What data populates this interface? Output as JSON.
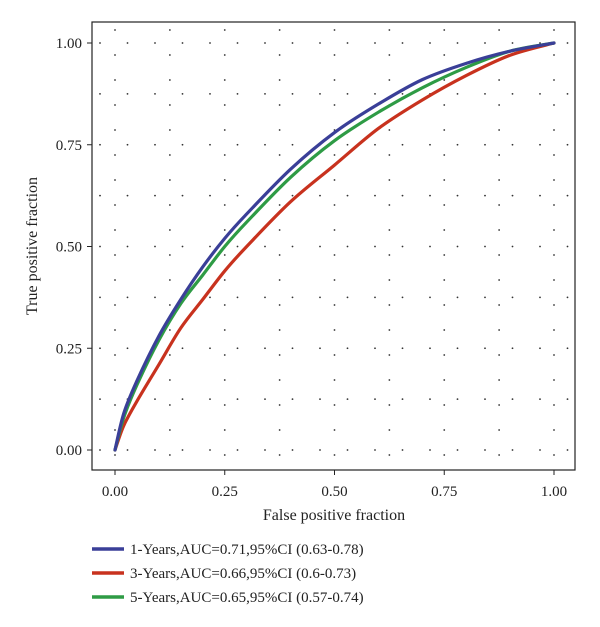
{
  "chart_data": {
    "type": "line",
    "title": "",
    "xlabel": "False positive fraction",
    "ylabel": "True positive fraction",
    "xlim": [
      0,
      1
    ],
    "ylim": [
      0,
      1
    ],
    "xticks": [
      "0.00",
      "0.25",
      "0.50",
      "0.75",
      "1.00"
    ],
    "yticks": [
      "0.00",
      "0.25",
      "0.50",
      "0.75",
      "1.00"
    ],
    "grid": "dotted",
    "legend_position": "bottom",
    "series": [
      {
        "name": "1-Years,AUC=0.71,95%CI (0.63-0.78)",
        "color": "#3a3f98",
        "x": [
          0,
          0.02,
          0.05,
          0.1,
          0.15,
          0.2,
          0.25,
          0.3,
          0.4,
          0.5,
          0.6,
          0.7,
          0.8,
          0.9,
          1.0
        ],
        "y": [
          0,
          0.09,
          0.17,
          0.28,
          0.37,
          0.45,
          0.52,
          0.58,
          0.69,
          0.78,
          0.85,
          0.91,
          0.95,
          0.98,
          1.0
        ]
      },
      {
        "name": "3-Years,AUC=0.66,95%CI (0.6-0.73)",
        "color": "#c8321e",
        "x": [
          0,
          0.02,
          0.05,
          0.1,
          0.15,
          0.2,
          0.25,
          0.3,
          0.4,
          0.5,
          0.6,
          0.7,
          0.8,
          0.9,
          1.0
        ],
        "y": [
          0,
          0.06,
          0.12,
          0.21,
          0.3,
          0.37,
          0.44,
          0.5,
          0.61,
          0.7,
          0.79,
          0.86,
          0.92,
          0.97,
          1.0
        ]
      },
      {
        "name": "5-Years,AUC=0.65,95%CI (0.57-0.74)",
        "color": "#2e9b45",
        "x": [
          0,
          0.02,
          0.05,
          0.1,
          0.15,
          0.2,
          0.25,
          0.3,
          0.4,
          0.5,
          0.6,
          0.7,
          0.8,
          0.9,
          1.0
        ],
        "y": [
          0,
          0.08,
          0.16,
          0.27,
          0.36,
          0.43,
          0.5,
          0.56,
          0.67,
          0.76,
          0.83,
          0.89,
          0.94,
          0.98,
          1.0
        ]
      }
    ]
  }
}
